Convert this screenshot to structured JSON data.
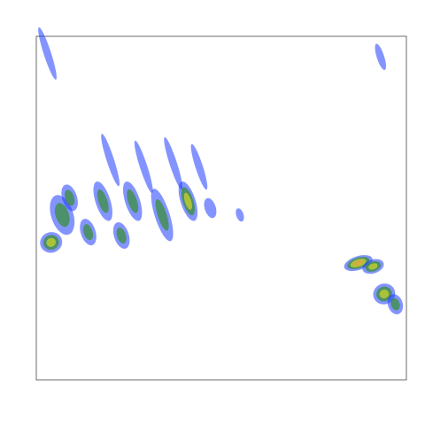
{
  "chart_data": {
    "type": "heatmap",
    "title": "",
    "xlabel": "",
    "ylabel": "",
    "xlim": [
      0,
      100
    ],
    "ylim": [
      0,
      100
    ],
    "grid": false,
    "legend": "none",
    "colormap": [
      "#1f3cff",
      "#3b8f3b",
      "#c9d32a",
      "#e8a24a",
      "#e87a6a"
    ],
    "background": "#ffffff",
    "frame_color": "#6b6b6b",
    "blobs": [
      {
        "x": 3,
        "y": 95,
        "dx": 1,
        "dy": 8,
        "level": 0.15
      },
      {
        "x": 4,
        "y": 40,
        "dx": 3,
        "dy": 3,
        "level": 0.55
      },
      {
        "x": 7,
        "y": 48,
        "dx": 3,
        "dy": 6,
        "level": 0.45
      },
      {
        "x": 9,
        "y": 53,
        "dx": 2,
        "dy": 4,
        "level": 0.35
      },
      {
        "x": 14,
        "y": 43,
        "dx": 2,
        "dy": 4,
        "level": 0.45
      },
      {
        "x": 18,
        "y": 52,
        "dx": 2,
        "dy": 6,
        "level": 0.4
      },
      {
        "x": 20,
        "y": 64,
        "dx": 1,
        "dy": 8,
        "level": 0.2
      },
      {
        "x": 23,
        "y": 42,
        "dx": 2,
        "dy": 4,
        "level": 0.45
      },
      {
        "x": 26,
        "y": 52,
        "dx": 2,
        "dy": 6,
        "level": 0.35
      },
      {
        "x": 29,
        "y": 62,
        "dx": 1,
        "dy": 8,
        "level": 0.2
      },
      {
        "x": 34,
        "y": 48,
        "dx": 2,
        "dy": 8,
        "level": 0.45
      },
      {
        "x": 37,
        "y": 63,
        "dx": 1,
        "dy": 8,
        "level": 0.2
      },
      {
        "x": 41,
        "y": 52,
        "dx": 2,
        "dy": 6,
        "level": 0.5
      },
      {
        "x": 44,
        "y": 62,
        "dx": 1,
        "dy": 7,
        "level": 0.2
      },
      {
        "x": 47,
        "y": 50,
        "dx": 1.5,
        "dy": 3,
        "level": 0.2
      },
      {
        "x": 55,
        "y": 48,
        "dx": 1,
        "dy": 2,
        "level": 0.15
      },
      {
        "x": 87,
        "y": 34,
        "dx": 4,
        "dy": 2,
        "level": 0.8
      },
      {
        "x": 91,
        "y": 33,
        "dx": 3,
        "dy": 2,
        "level": 0.6
      },
      {
        "x": 94,
        "y": 25,
        "dx": 3,
        "dy": 3,
        "level": 0.6
      },
      {
        "x": 97,
        "y": 22,
        "dx": 2,
        "dy": 3,
        "level": 0.45
      },
      {
        "x": 93,
        "y": 94,
        "dx": 1,
        "dy": 4,
        "level": 0.15
      }
    ]
  }
}
